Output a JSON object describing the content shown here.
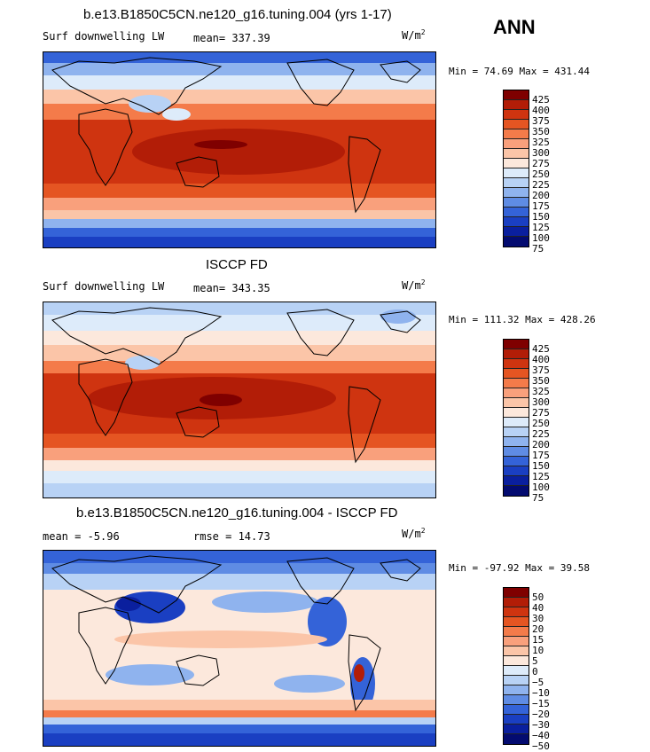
{
  "season": "ANN",
  "panels": [
    {
      "title": "b.e13.B1850C5CN.ne120_g16.tuning.004 (yrs 1-17)",
      "left_label": "Surf downwelling LW",
      "stat1": "mean= 337.39",
      "stat2": "",
      "units_base": "W/m",
      "units_exp": "2",
      "minmax": "Min =  74.69 Max = 431.44",
      "colorbar_levels": [
        "425",
        "400",
        "375",
        "350",
        "325",
        "300",
        "275",
        "250",
        "225",
        "200",
        "175",
        "150",
        "125",
        "100",
        "75"
      ],
      "colors": [
        "#7f0000",
        "#b21d07",
        "#cf3410",
        "#e55522",
        "#f47b4a",
        "#f9a07c",
        "#fbc5a8",
        "#fce8dc",
        "#ddebfa",
        "#b8d2f5",
        "#8fb3ee",
        "#5f8ce4",
        "#3463d8",
        "#1a3fc2",
        "#0a1f9e",
        "#030b70"
      ]
    },
    {
      "title": "ISCCP FD",
      "left_label": "Surf downwelling LW",
      "stat1": "mean= 343.35",
      "stat2": "",
      "units_base": "W/m",
      "units_exp": "2",
      "minmax": "Min = 111.32 Max = 428.26",
      "colorbar_levels": [
        "425",
        "400",
        "375",
        "350",
        "325",
        "300",
        "275",
        "250",
        "225",
        "200",
        "175",
        "150",
        "125",
        "100",
        "75"
      ],
      "colors": [
        "#7f0000",
        "#b21d07",
        "#cf3410",
        "#e55522",
        "#f47b4a",
        "#f9a07c",
        "#fbc5a8",
        "#fce8dc",
        "#ddebfa",
        "#b8d2f5",
        "#8fb3ee",
        "#5f8ce4",
        "#3463d8",
        "#1a3fc2",
        "#0a1f9e",
        "#030b70"
      ]
    },
    {
      "title": "b.e13.B1850C5CN.ne120_g16.tuning.004 - ISCCP FD",
      "left_label": "mean =  -5.96",
      "stat1": "rmse =  14.73",
      "stat2": "",
      "units_base": "W/m",
      "units_exp": "2",
      "minmax": "Min = -97.92 Max =  39.58",
      "colorbar_levels": [
        "50",
        "40",
        "30",
        "20",
        "15",
        "10",
        "5",
        "0",
        "−5",
        "−10",
        "−15",
        "−20",
        "−30",
        "−40",
        "−50"
      ],
      "colors": [
        "#7f0000",
        "#b21d07",
        "#cf3410",
        "#e55522",
        "#f47b4a",
        "#f9a07c",
        "#fbc5a8",
        "#fce8dc",
        "#ddebfa",
        "#b8d2f5",
        "#8fb3ee",
        "#5f8ce4",
        "#3463d8",
        "#1a3fc2",
        "#0a1f9e",
        "#030b70"
      ]
    }
  ]
}
